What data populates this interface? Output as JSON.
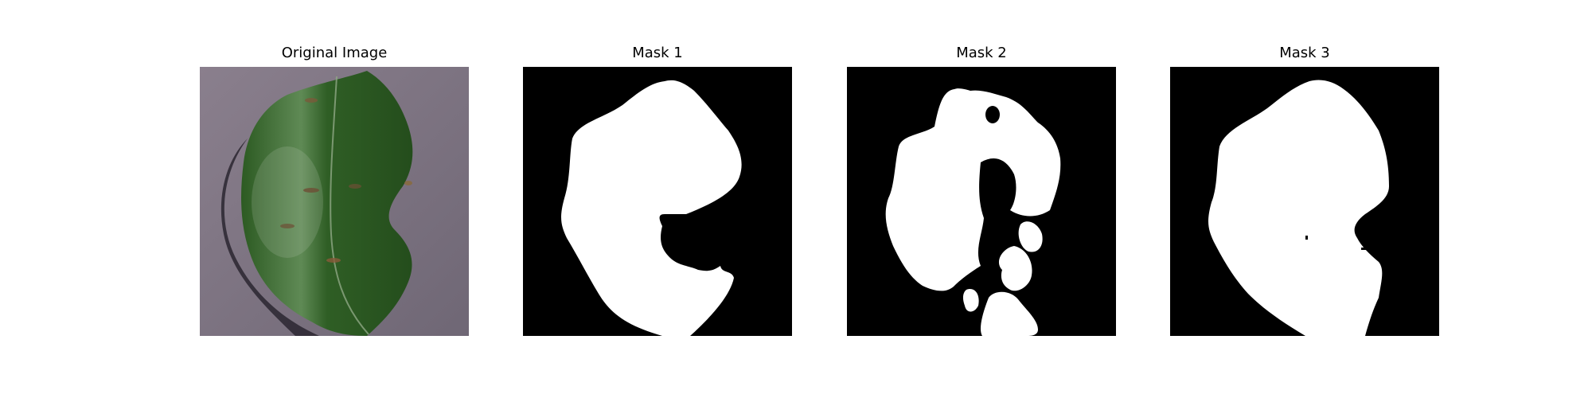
{
  "panels": [
    {
      "title": "Original Image"
    },
    {
      "title": "Mask 1"
    },
    {
      "title": "Mask 2"
    },
    {
      "title": "Mask 3"
    }
  ],
  "colors": {
    "background_surface": "#7e7583",
    "leaf_dark": "#2e5a22",
    "leaf_mid": "#3f7430",
    "leaf_highlight": "#a8b9a2",
    "mask_foreground": "#ffffff",
    "mask_background": "#000000"
  }
}
